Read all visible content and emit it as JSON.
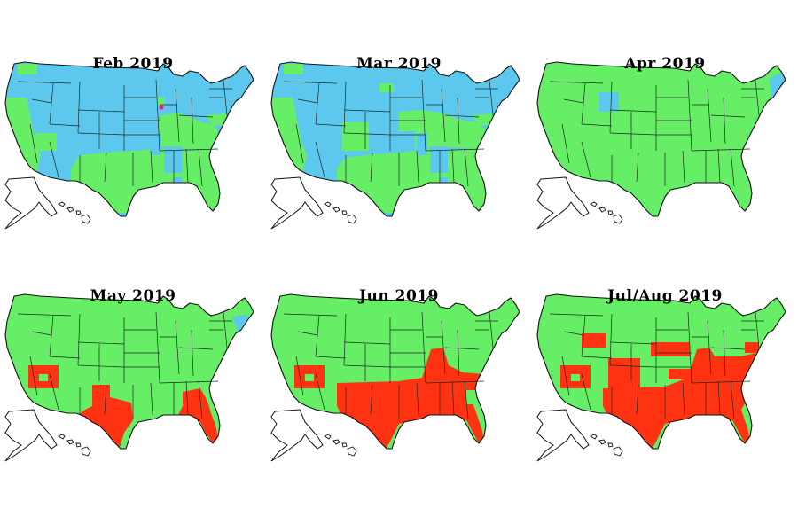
{
  "colors": {
    "base_a": "#5cc8ee",
    "base_b": "#66ee66",
    "highlight": "#ff3311",
    "dot": "#ff1493",
    "unfilled": "#ffffff",
    "border": "#111111"
  },
  "panels": [
    {
      "title": "Feb 2019",
      "base": "base_a"
    },
    {
      "title": "Mar 2019",
      "base": "base_a"
    },
    {
      "title": "Apr 2019",
      "base": "base_b"
    },
    {
      "title": "May 2019",
      "base": "base_b"
    },
    {
      "title": "Jun 2019",
      "base": "base_b"
    },
    {
      "title": "Jul/Aug 2019",
      "base": "base_b"
    }
  ]
}
